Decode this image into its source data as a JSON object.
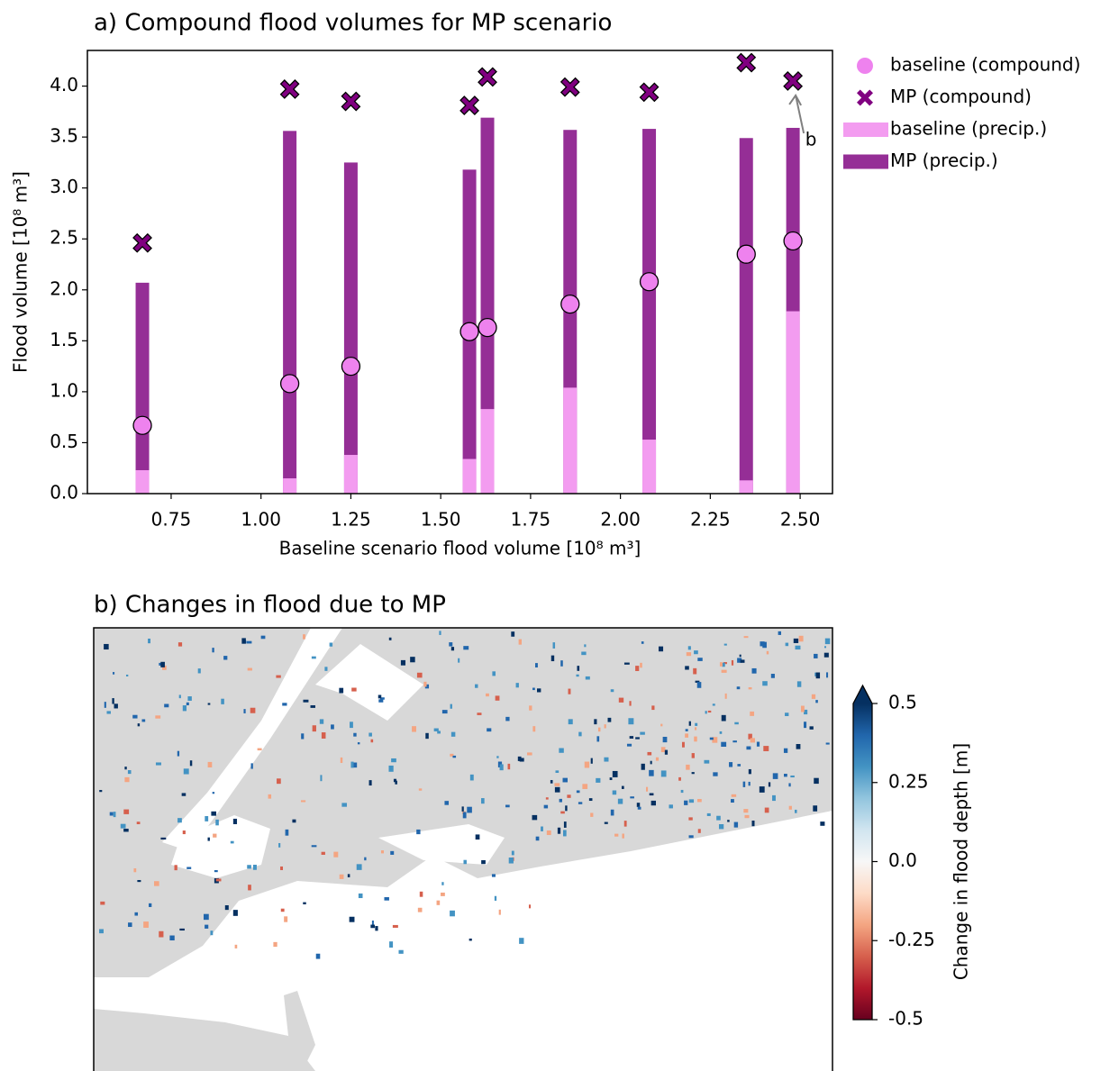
{
  "chart_data": [
    {
      "type": "scatter",
      "title": "a) Compound flood volumes for MP scenario",
      "x_label": "Baseline scenario flood volume [10⁸ m³]",
      "y_label": "Flood volume [10⁸ m³]",
      "x": [
        0.67,
        1.08,
        1.25,
        1.58,
        1.63,
        1.86,
        2.08,
        2.35,
        2.48
      ],
      "series": [
        {
          "name": "MP (precip.)",
          "kind": "bar",
          "color": "#952e96",
          "values": [
            2.07,
            3.56,
            3.25,
            3.18,
            3.69,
            3.57,
            3.58,
            3.49,
            3.59
          ]
        },
        {
          "name": "baseline (precip.)",
          "kind": "bar",
          "color": "#f39cf0",
          "values": [
            0.23,
            0.15,
            0.38,
            0.34,
            0.83,
            1.04,
            0.53,
            0.13,
            1.79
          ]
        },
        {
          "name": "baseline (compound)",
          "kind": "scatter",
          "marker": "o",
          "color": "#ee82ee",
          "values": [
            0.67,
            1.08,
            1.25,
            1.59,
            1.63,
            1.86,
            2.08,
            2.35,
            2.48
          ]
        },
        {
          "name": "MP (compound)",
          "kind": "scatter",
          "marker": "X",
          "color": "#800080",
          "values": [
            2.46,
            3.97,
            3.85,
            3.81,
            4.09,
            3.99,
            3.94,
            4.23,
            4.05
          ]
        }
      ],
      "legend_order": [
        2,
        3,
        1,
        0
      ],
      "legend": "outside right",
      "annotation": {
        "text": "b",
        "series": 3,
        "index": 8,
        "color": "#808080"
      },
      "xlim": [
        0.517,
        2.59
      ],
      "ylim": [
        0,
        4.35
      ],
      "xticks": [
        0.75,
        {
          "value": 1,
          "label": "1.00"
        },
        1.25,
        {
          "value": 1.5,
          "label": "1.50"
        },
        1.75,
        {
          "value": 2,
          "label": "2.00"
        },
        2.25,
        {
          "value": 2.5,
          "label": "2.50"
        }
      ],
      "yticks": [
        {
          "value": 0,
          "label": "0.0"
        },
        0.5,
        {
          "value": 1,
          "label": "1.0"
        },
        1.5,
        {
          "value": 2,
          "label": "2.0"
        },
        2.5,
        {
          "value": 3,
          "label": "3.0"
        },
        3.5,
        {
          "value": 4,
          "label": "4.0"
        }
      ]
    },
    {
      "type": "map",
      "title": "b) Changes in flood due to MP",
      "colorbar": {
        "label": "Change in flood depth [m]",
        "cmap": "RdBu",
        "extend": "max",
        "lim": [
          -0.5,
          0.5
        ],
        "ticks": [
          -0.5,
          -0.25,
          {
            "value": 0,
            "label": "0.0"
          },
          0.25,
          0.5
        ]
      }
    }
  ]
}
